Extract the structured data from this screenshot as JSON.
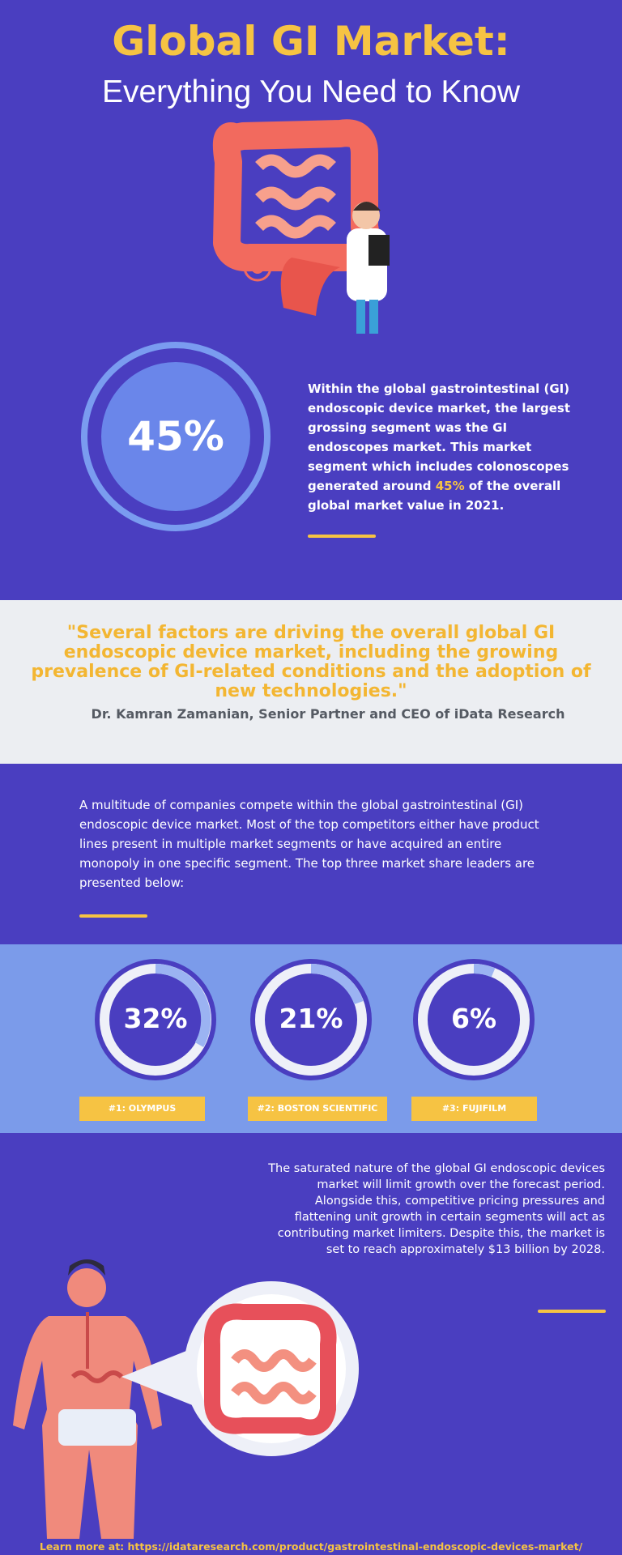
{
  "header": {
    "title": "Global GI Market:",
    "subtitle": "Everything You Need to Know"
  },
  "highlight_stat": {
    "value": "45%"
  },
  "intro": {
    "text_before": "Within the global gastrointestinal (GI) endoscopic device market, the largest grossing segment was the GI endoscopes market. This market segment which includes colonoscopes generated around ",
    "highlight": "45%",
    "text_after": " of the overall global market value in 2021."
  },
  "quote": {
    "text": "\"Several factors are driving the overall global GI endoscopic device market, including the growing prevalence of GI-related conditions and the adoption of new technologies.\"",
    "attribution": "Dr. Kamran Zamanian, Senior Partner and CEO of iData Research"
  },
  "competition": {
    "text": "A multitude of companies compete within the global gastrointestinal (GI) endoscopic device market. Most of the top competitors either have product lines present in multiple market segments or have acquired an entire monopoly in one specific segment. The top three market share leaders are presented below:"
  },
  "leaders": [
    {
      "share": "32%",
      "label": "#1: OLYMPUS"
    },
    {
      "share": "21%",
      "label": "#2: BOSTON SCIENTIFIC"
    },
    {
      "share": "6%",
      "label": "#3: FUJIFILM"
    }
  ],
  "outlook": {
    "text": "The saturated nature of the global GI endoscopic devices market will limit growth over the forecast period. Alongside this, competitive pricing pressures and flattening unit growth in certain segments will act as contributing market limiters. Despite this, the market is set to reach approximately $13 billion by 2028."
  },
  "footer": {
    "text": "Learn more at: https://idataresearch.com/product/gastrointestinal-endoscopic-devices-market/"
  }
}
